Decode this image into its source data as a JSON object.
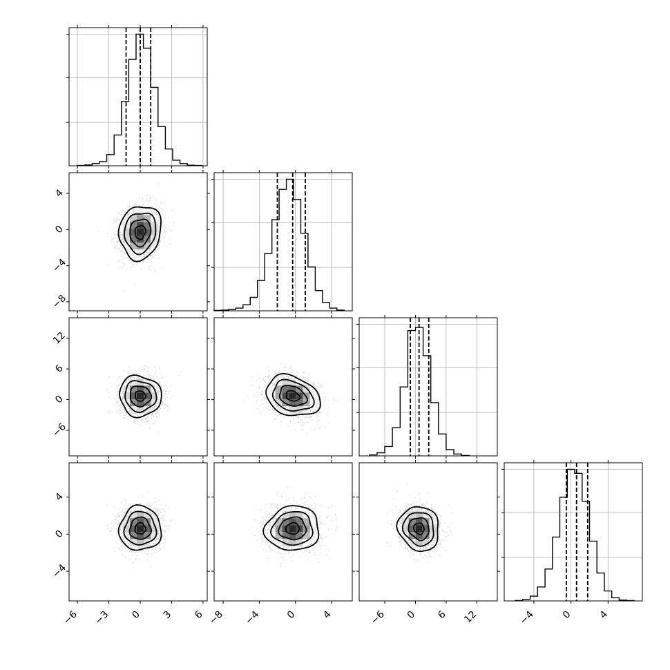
{
  "chart_data": {
    "type": "corner",
    "title": "",
    "n_params": 4,
    "params": [
      {
        "label": "",
        "ticks": [
          -6,
          -3,
          0,
          3,
          6
        ],
        "tick_labels": [
          "−6",
          "−3",
          "0",
          "3",
          "6"
        ],
        "range": [
          -6.8,
          6.4
        ],
        "mean": 0.0,
        "sigma": 1.0,
        "quantiles": [
          -1.35,
          0.0,
          1.0
        ]
      },
      {
        "label": "",
        "ticks": [
          -8,
          -4,
          0,
          4
        ],
        "tick_labels": [
          "−8",
          "−4",
          "0",
          "4"
        ],
        "range": [
          -9.0,
          6.3
        ],
        "mean": -0.3,
        "sigma": 1.5,
        "quantiles": [
          -2.0,
          -0.3,
          1.1
        ]
      },
      {
        "label": "",
        "ticks": [
          -6,
          0,
          6,
          12
        ],
        "tick_labels": [
          "−6",
          "0",
          "6",
          "12"
        ],
        "range": [
          -11.0,
          16.0
        ],
        "mean": 0.7,
        "sigma": 2.0,
        "quantiles": [
          -1.0,
          0.7,
          2.6
        ]
      },
      {
        "label": "",
        "ticks": [
          -4,
          0,
          4
        ],
        "tick_labels": [
          "−4",
          "0",
          "4"
        ],
        "range": [
          -7.2,
          7.7
        ],
        "mean": 0.6,
        "sigma": 1.2,
        "quantiles": [
          -0.5,
          0.6,
          1.8
        ]
      }
    ],
    "histograms": [
      {
        "param": 0,
        "bin_edges": [
          -6.0,
          -5.3,
          -4.6,
          -3.9,
          -3.2,
          -2.5,
          -1.8,
          -1.1,
          -0.4,
          0.3,
          1.0,
          1.7,
          2.4,
          3.1,
          3.8,
          4.5,
          5.2,
          5.9
        ],
        "counts": [
          1,
          3,
          8,
          15,
          40,
          110,
          230,
          380,
          470,
          420,
          280,
          140,
          60,
          20,
          8,
          2,
          1
        ],
        "ymax": 470
      },
      {
        "param": 1,
        "bin_edges": [
          -9.0,
          -8.2,
          -7.4,
          -6.6,
          -5.8,
          -5.0,
          -4.2,
          -3.4,
          -2.6,
          -1.8,
          -1.0,
          -0.2,
          0.6,
          1.4,
          2.2,
          3.0,
          3.8,
          4.6,
          5.4
        ],
        "counts": [
          1,
          2,
          4,
          8,
          18,
          40,
          90,
          170,
          270,
          360,
          390,
          330,
          230,
          130,
          60,
          25,
          8,
          2
        ],
        "ymax": 390
      },
      {
        "param": 2,
        "bin_edges": [
          -9.0,
          -7.5,
          -6.0,
          -4.5,
          -3.0,
          -1.5,
          0.0,
          1.5,
          3.0,
          4.5,
          6.0,
          7.5,
          9.0,
          10.5
        ],
        "counts": [
          3,
          10,
          30,
          90,
          220,
          400,
          410,
          320,
          170,
          70,
          20,
          6,
          1
        ],
        "ymax": 420
      },
      {
        "param": 3,
        "bin_edges": [
          -6.0,
          -5.2,
          -4.4,
          -3.6,
          -2.8,
          -2.0,
          -1.2,
          -0.4,
          0.4,
          1.2,
          2.0,
          2.8,
          3.6,
          4.4,
          5.2,
          6.0,
          6.8
        ],
        "counts": [
          1,
          4,
          12,
          35,
          80,
          160,
          260,
          330,
          320,
          250,
          150,
          70,
          25,
          8,
          2,
          1
        ],
        "ymax": 330
      }
    ],
    "pairs": [
      {
        "x_param": 0,
        "y_param": 1,
        "correlation": 0.1
      },
      {
        "x_param": 0,
        "y_param": 2,
        "correlation": -0.05
      },
      {
        "x_param": 1,
        "y_param": 2,
        "correlation": -0.25
      },
      {
        "x_param": 0,
        "y_param": 3,
        "correlation": 0.0
      },
      {
        "x_param": 1,
        "y_param": 3,
        "correlation": 0.05
      },
      {
        "x_param": 2,
        "y_param": 3,
        "correlation": -0.1
      }
    ],
    "contour_levels_sigma": [
      0.5,
      1.0,
      1.5,
      2.0
    ],
    "grid": true,
    "colors": {
      "points": "#9a9a9a",
      "lines": "#000000",
      "grid": "#b0b0b0"
    }
  }
}
